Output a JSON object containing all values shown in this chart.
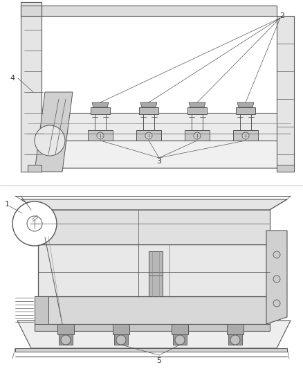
{
  "background_color": "#ffffff",
  "line_color": "#555555",
  "label_color": "#333333",
  "fig_width": 4.38,
  "fig_height": 5.33,
  "dpi": 100
}
